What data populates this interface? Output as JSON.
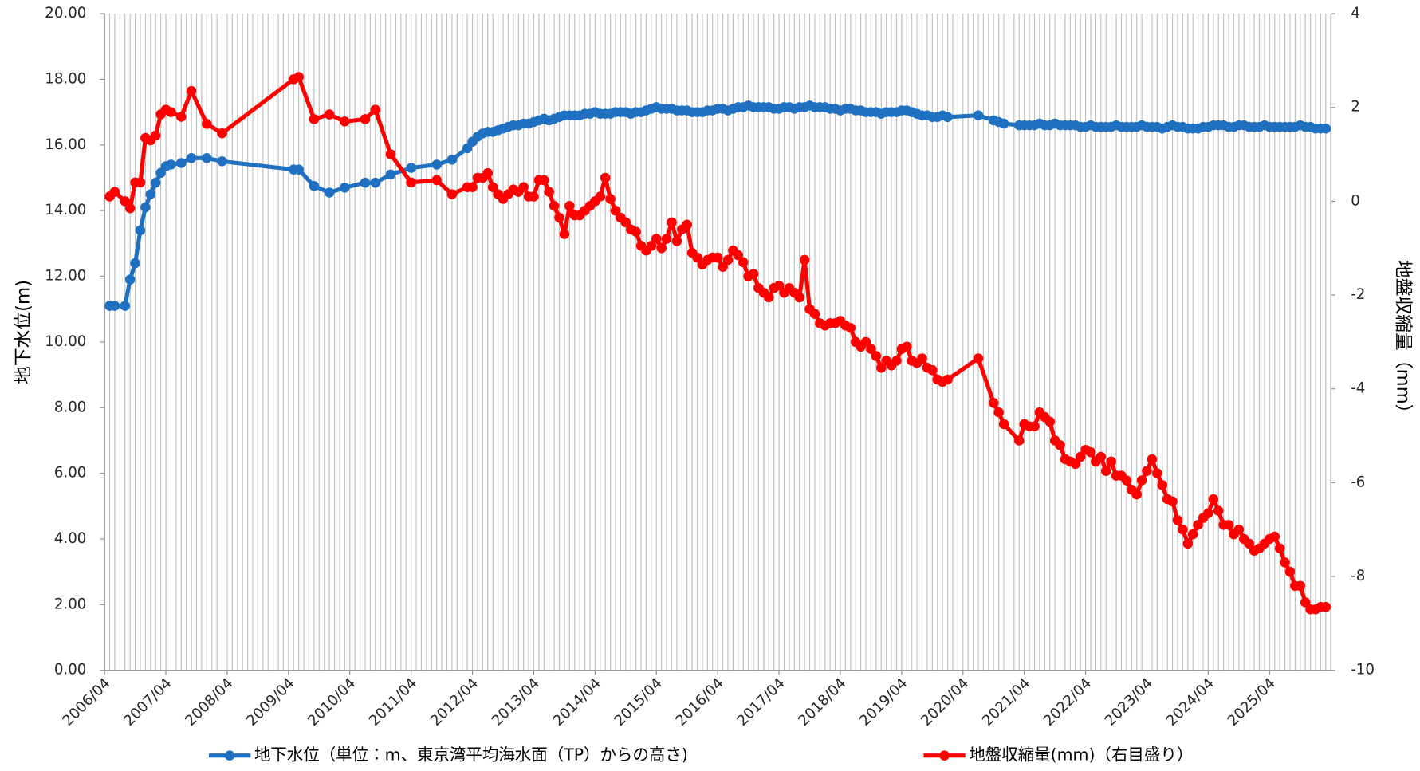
{
  "chart_data": {
    "type": "line",
    "y_label": "地下水位(m)",
    "y2_label": "地盤収縮量（mm）",
    "xlim": [
      "2006/04",
      "2026/04"
    ],
    "xticks": [
      "2006/04",
      "2007/04",
      "2008/04",
      "2009/04",
      "2010/04",
      "2011/04",
      "2012/04",
      "2013/04",
      "2014/04",
      "2015/04",
      "2016/04",
      "2017/04",
      "2018/04",
      "2019/04",
      "2020/04",
      "2021/04",
      "2022/04",
      "2023/04",
      "2024/04",
      "2025/04"
    ],
    "ylim": [
      0,
      20
    ],
    "yticks": [
      {
        "value": 0,
        "label": "0.00"
      },
      {
        "value": 2,
        "label": "2.00"
      },
      {
        "value": 4,
        "label": "4.00"
      },
      {
        "value": 6,
        "label": "6.00"
      },
      {
        "value": 8,
        "label": "8.00"
      },
      {
        "value": 10,
        "label": "10.00"
      },
      {
        "value": 12,
        "label": "12.00"
      },
      {
        "value": 14,
        "label": "14.00"
      },
      {
        "value": 16,
        "label": "16.00"
      },
      {
        "value": 18,
        "label": "18.00"
      },
      {
        "value": 20,
        "label": "20.00"
      }
    ],
    "y2lim": [
      -10,
      4
    ],
    "y2ticks": [
      -10,
      -8,
      -6,
      -4,
      -2,
      0,
      2,
      4
    ],
    "grid": true,
    "legend": "bottom",
    "x": [
      "2006/05",
      "2006/06",
      "2006/08",
      "2006/09",
      "2006/10",
      "2006/11",
      "2006/12",
      "2007/01",
      "2007/02",
      "2007/03",
      "2007/04",
      "2007/05",
      "2007/07",
      "2007/09",
      "2007/12",
      "2008/03",
      "2009/05",
      "2009/06",
      "2009/09",
      "2009/12",
      "2010/03",
      "2010/07",
      "2010/09",
      "2010/12",
      "2011/04",
      "2011/09",
      "2011/12",
      "2012/03",
      "2012/04",
      "2012/05",
      "2012/06",
      "2012/07",
      "2012/08",
      "2012/09",
      "2012/10",
      "2012/11",
      "2012/12",
      "2013/01",
      "2013/02",
      "2013/03",
      "2013/04",
      "2013/05",
      "2013/06",
      "2013/07",
      "2013/08",
      "2013/09",
      "2013/10",
      "2013/11",
      "2013/12",
      "2014/01",
      "2014/02",
      "2014/03",
      "2014/04",
      "2014/05",
      "2014/06",
      "2014/07",
      "2014/08",
      "2014/09",
      "2014/10",
      "2014/11",
      "2014/12",
      "2015/01",
      "2015/02",
      "2015/03",
      "2015/04",
      "2015/05",
      "2015/06",
      "2015/07",
      "2015/08",
      "2015/09",
      "2015/10",
      "2015/11",
      "2015/12",
      "2016/01",
      "2016/02",
      "2016/03",
      "2016/04",
      "2016/05",
      "2016/06",
      "2016/07",
      "2016/08",
      "2016/09",
      "2016/10",
      "2016/11",
      "2016/12",
      "2017/01",
      "2017/02",
      "2017/03",
      "2017/04",
      "2017/05",
      "2017/06",
      "2017/07",
      "2017/08",
      "2017/09",
      "2017/10",
      "2017/11",
      "2017/12",
      "2018/01",
      "2018/02",
      "2018/03",
      "2018/04",
      "2018/05",
      "2018/06",
      "2018/07",
      "2018/08",
      "2018/09",
      "2018/10",
      "2018/11",
      "2018/12",
      "2019/01",
      "2019/02",
      "2019/03",
      "2019/04",
      "2019/05",
      "2019/06",
      "2019/07",
      "2019/08",
      "2019/09",
      "2019/10",
      "2019/11",
      "2019/12",
      "2020/01",
      "2020/07",
      "2020/10",
      "2020/11",
      "2020/12",
      "2021/03",
      "2021/04",
      "2021/05",
      "2021/06",
      "2021/07",
      "2021/08",
      "2021/09",
      "2021/10",
      "2021/11",
      "2021/12",
      "2022/01",
      "2022/02",
      "2022/03",
      "2022/04",
      "2022/05",
      "2022/06",
      "2022/07",
      "2022/08",
      "2022/09",
      "2022/10",
      "2022/11",
      "2022/12",
      "2023/01",
      "2023/02",
      "2023/03",
      "2023/04",
      "2023/05",
      "2023/06",
      "2023/07",
      "2023/08",
      "2023/09",
      "2023/10",
      "2023/11",
      "2023/12",
      "2024/01",
      "2024/02",
      "2024/03",
      "2024/04",
      "2024/05",
      "2024/06",
      "2024/07",
      "2024/08",
      "2024/09",
      "2024/10",
      "2024/11",
      "2024/12",
      "2025/01",
      "2025/02",
      "2025/03",
      "2025/04",
      "2025/05",
      "2025/06",
      "2025/07",
      "2025/08",
      "2025/09",
      "2025/10",
      "2025/11",
      "2025/12",
      "2026/01",
      "2026/02",
      "2026/03"
    ],
    "series": [
      {
        "name": "地下水位（単位：m、東京湾平均海水面（TP）からの高さ)",
        "color": "#1f70c1",
        "values": [
          11.1,
          11.1,
          11.1,
          11.9,
          12.4,
          13.4,
          14.1,
          14.5,
          14.85,
          15.15,
          15.35,
          15.4,
          15.45,
          15.6,
          15.6,
          15.5,
          15.25,
          15.25,
          14.75,
          14.55,
          14.7,
          14.85,
          14.85,
          15.1,
          15.3,
          15.4,
          15.55,
          15.9,
          16.1,
          16.25,
          16.35,
          16.4,
          16.4,
          16.45,
          16.5,
          16.55,
          16.6,
          16.6,
          16.65,
          16.65,
          16.7,
          16.75,
          16.8,
          16.75,
          16.8,
          16.85,
          16.9,
          16.9,
          16.9,
          16.9,
          16.95,
          16.95,
          17.0,
          16.95,
          16.95,
          16.95,
          17.0,
          17.0,
          17.0,
          16.95,
          17.0,
          17.0,
          17.05,
          17.1,
          17.15,
          17.1,
          17.1,
          17.1,
          17.05,
          17.05,
          17.05,
          17.0,
          17.0,
          17.0,
          17.05,
          17.05,
          17.1,
          17.1,
          17.05,
          17.1,
          17.15,
          17.15,
          17.2,
          17.15,
          17.15,
          17.15,
          17.15,
          17.1,
          17.1,
          17.15,
          17.15,
          17.1,
          17.15,
          17.15,
          17.2,
          17.15,
          17.15,
          17.15,
          17.1,
          17.1,
          17.05,
          17.1,
          17.1,
          17.05,
          17.05,
          17.0,
          17.0,
          17.0,
          16.95,
          17.0,
          17.0,
          17.0,
          17.05,
          17.05,
          17.0,
          16.95,
          16.9,
          16.9,
          16.85,
          16.85,
          16.9,
          16.85,
          16.9,
          16.75,
          16.7,
          16.65,
          16.6,
          16.6,
          16.6,
          16.6,
          16.65,
          16.6,
          16.6,
          16.65,
          16.6,
          16.6,
          16.6,
          16.6,
          16.55,
          16.55,
          16.6,
          16.55,
          16.55,
          16.55,
          16.55,
          16.6,
          16.55,
          16.55,
          16.55,
          16.55,
          16.6,
          16.55,
          16.55,
          16.55,
          16.5,
          16.55,
          16.6,
          16.55,
          16.55,
          16.5,
          16.5,
          16.5,
          16.55,
          16.55,
          16.6,
          16.6,
          16.6,
          16.55,
          16.55,
          16.6,
          16.6,
          16.55,
          16.55,
          16.55,
          16.6,
          16.55,
          16.55,
          16.55,
          16.55,
          16.55,
          16.55,
          16.6,
          16.55,
          16.55,
          16.5,
          16.5,
          16.5
        ]
      },
      {
        "name": "地盤収縮量(mm)（右目盛り）",
        "color": "#ff0000",
        "axis": "y2",
        "values": [
          0.1,
          0.2,
          0.0,
          -0.15,
          0.4,
          0.4,
          1.35,
          1.3,
          1.4,
          1.85,
          1.95,
          1.9,
          1.8,
          2.35,
          1.65,
          1.45,
          2.6,
          2.65,
          1.75,
          1.85,
          1.7,
          1.75,
          1.95,
          1.0,
          0.4,
          0.45,
          0.15,
          0.3,
          0.3,
          0.5,
          0.5,
          0.6,
          0.3,
          0.15,
          0.05,
          0.15,
          0.25,
          0.2,
          0.3,
          0.1,
          0.1,
          0.45,
          0.45,
          0.2,
          -0.1,
          -0.35,
          -0.7,
          -0.1,
          -0.3,
          -0.3,
          -0.2,
          -0.1,
          0,
          0.1,
          0.5,
          0.05,
          -0.2,
          -0.35,
          -0.45,
          -0.6,
          -0.65,
          -0.95,
          -1.05,
          -0.95,
          -0.8,
          -1.0,
          -0.8,
          -0.45,
          -0.85,
          -0.6,
          -0.5,
          -1.1,
          -1.2,
          -1.35,
          -1.25,
          -1.2,
          -1.2,
          -1.4,
          -1.25,
          -1.05,
          -1.15,
          -1.3,
          -1.6,
          -1.55,
          -1.85,
          -1.95,
          -2.05,
          -1.85,
          -1.8,
          -1.95,
          -1.85,
          -1.95,
          -2.05,
          -1.25,
          -2.3,
          -2.4,
          -2.6,
          -2.65,
          -2.6,
          -2.6,
          -2.55,
          -2.65,
          -2.7,
          -3.0,
          -3.1,
          -3.0,
          -3.15,
          -3.3,
          -3.55,
          -3.4,
          -3.5,
          -3.4,
          -3.15,
          -3.1,
          -3.4,
          -3.45,
          -3.35,
          -3.55,
          -3.6,
          -3.8,
          -3.85,
          -3.8,
          -3.35,
          -4.3,
          -4.5,
          -4.75,
          -5.1,
          -4.75,
          -4.8,
          -4.8,
          -4.5,
          -4.6,
          -4.7,
          -5.1,
          -5.2,
          -5.5,
          -5.55,
          -5.6,
          -5.45,
          -5.3,
          -5.35,
          -5.55,
          -5.45,
          -5.75,
          -5.55,
          -5.85,
          -5.85,
          -5.95,
          -6.15,
          -6.25,
          -5.95,
          -5.75,
          -5.5,
          -5.8,
          -6.05,
          -6.35,
          -6.4,
          -6.8,
          -7.0,
          -7.3,
          -7.1,
          -6.9,
          -6.75,
          -6.65,
          -6.35,
          -6.6,
          -6.9,
          -6.9,
          -7.1,
          -7.0,
          -7.2,
          -7.3,
          -7.45,
          -7.4,
          -7.3,
          -7.2,
          -7.15,
          -7.4,
          -7.7,
          -7.9,
          -8.2,
          -8.2,
          -8.55,
          -8.7,
          -8.7,
          -8.65,
          -8.65
        ]
      }
    ]
  }
}
